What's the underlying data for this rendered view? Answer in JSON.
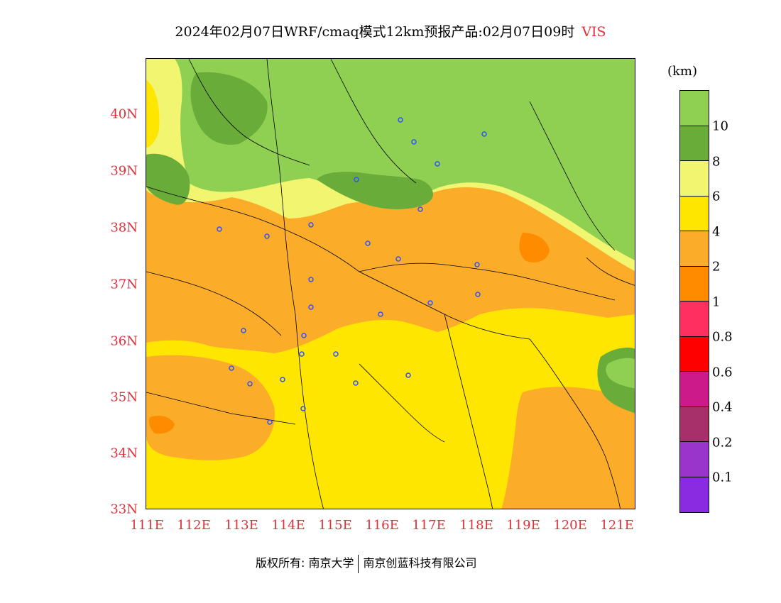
{
  "title": {
    "text": "2024年02月07日WRF/cmaq模式12km预报产品:02月07日09时",
    "variable": "VIS"
  },
  "axes": {
    "y_labels": [
      "40N",
      "39N",
      "38N",
      "37N",
      "36N",
      "35N",
      "34N",
      "33N"
    ],
    "x_labels": [
      "111E",
      "112E",
      "113E",
      "114E",
      "115E",
      "116E",
      "117E",
      "118E",
      "119E",
      "120E",
      "121E"
    ]
  },
  "legend": {
    "unit": "(km)",
    "colors": [
      "#8fcf52",
      "#6aac3a",
      "#f2f570",
      "#ffe600",
      "#fbad2a",
      "#ff8c00",
      "#ff3060",
      "#ff0000",
      "#cc1a8a",
      "#a8306a",
      "#9a35cc",
      "#8a2be2"
    ],
    "labels": [
      "10",
      "8",
      "6",
      "4",
      "2",
      "1",
      "0.8",
      "0.6",
      "0.4",
      "0.2",
      "0.1"
    ]
  },
  "colors": {
    "very_high_green": "#8fcf52",
    "high_green": "#6aac3a",
    "light_yellow": "#f2f570",
    "yellow": "#ffe600",
    "light_orange": "#fbad2a",
    "orange": "#ff8c00"
  },
  "copyright": {
    "left": "版权所有: 南京大学",
    "right": "南京创蓝科技有限公司"
  }
}
